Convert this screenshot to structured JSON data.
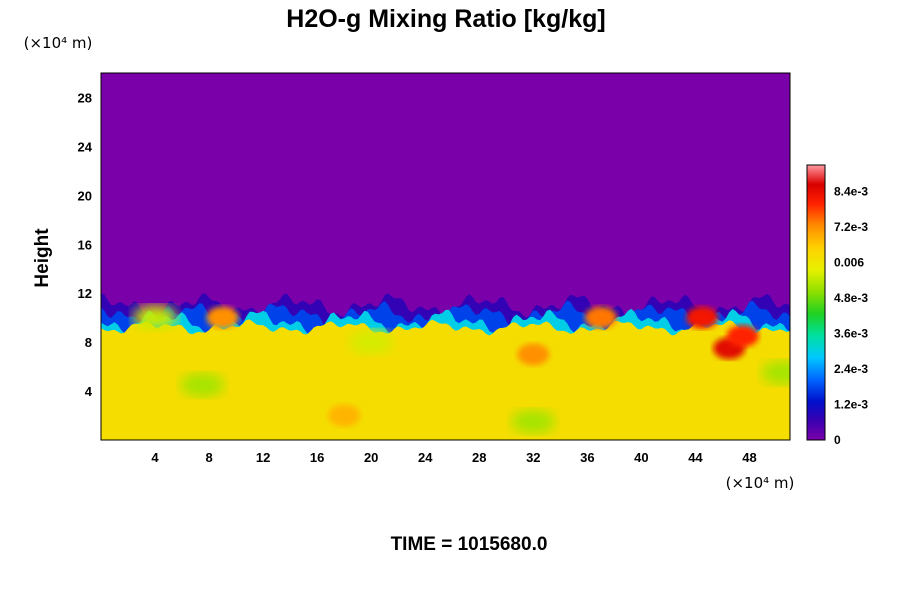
{
  "chart_data": {
    "type": "heatmap",
    "title": "H2O-g Mixing Ratio [kg/kg]",
    "ylabel": "Height",
    "x_unit_label": "(×10⁴ m)",
    "y_unit_label": "(×10⁴ m)",
    "xlim": [
      0,
      51
    ],
    "ylim": [
      0,
      30
    ],
    "xticks": [
      "4",
      "8",
      "12",
      "16",
      "20",
      "24",
      "28",
      "32",
      "36",
      "40",
      "44",
      "48"
    ],
    "yticks": [
      "4",
      "8",
      "12",
      "16",
      "20",
      "24",
      "28"
    ],
    "colorbar": {
      "min": 0,
      "max": 0.0093,
      "ticks": [
        "0",
        "1.2e-3",
        "2.4e-3",
        "3.6e-3",
        "4.8e-3",
        "0.006",
        "7.2e-3",
        "8.4e-3"
      ]
    },
    "field": {
      "upper_value": 0,
      "lower_value": 0.0062,
      "interface_height_km_x10": 11.0,
      "moist_patches": [
        {
          "x": 46.5,
          "y": 7.5,
          "value": 0.0085
        },
        {
          "x": 44.5,
          "y": 10,
          "value": 0.0082
        },
        {
          "x": 47.5,
          "y": 8.5,
          "value": 0.008
        },
        {
          "x": 32,
          "y": 7,
          "value": 0.0072
        },
        {
          "x": 37,
          "y": 10,
          "value": 0.0074
        },
        {
          "x": 9,
          "y": 10,
          "value": 0.0072
        },
        {
          "x": 18,
          "y": 2,
          "value": 0.0068
        }
      ],
      "dry_patches": [
        {
          "x": 7.5,
          "y": 4.5,
          "value": 0.0052
        },
        {
          "x": 32,
          "y": 1.5,
          "value": 0.0052
        },
        {
          "x": 50.5,
          "y": 5.5,
          "value": 0.0052
        },
        {
          "x": 4,
          "y": 10,
          "value": 0.0055
        },
        {
          "x": 20,
          "y": 8,
          "value": 0.0056
        }
      ]
    }
  },
  "time_label": "TIME = 1015680.0"
}
